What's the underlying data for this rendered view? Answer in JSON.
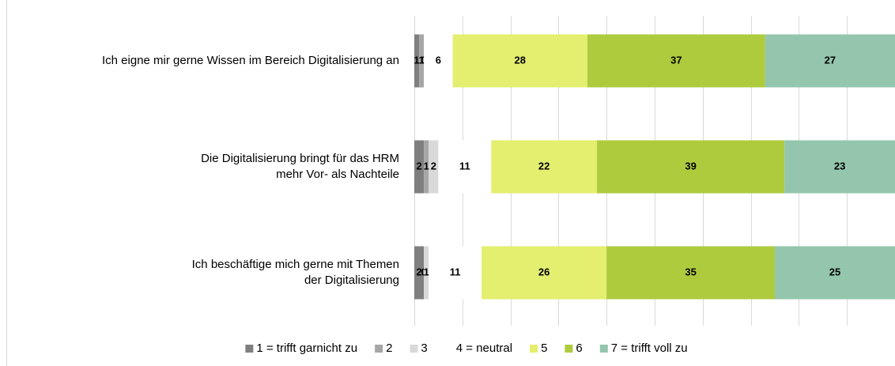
{
  "chart_data": {
    "type": "stacked-bar-horizontal",
    "categories": [
      [
        "Ich eigne mir gerne Wissen im Bereich Digitalisierung an"
      ],
      [
        "Die Digitalisierung bringt für das HRM",
        "mehr Vor- als Nachteile"
      ],
      [
        "Ich beschäftige mich gerne mit Themen",
        "der Digitalisierung"
      ]
    ],
    "series": [
      {
        "name": "1 = trifft garnicht zu",
        "color": "#7f7f7f",
        "values": [
          1,
          2,
          2
        ]
      },
      {
        "name": "2",
        "color": "#a6a6a6",
        "values": [
          1,
          1,
          0
        ]
      },
      {
        "name": "3",
        "color": "#d9d9d9",
        "values": [
          0,
          2,
          1
        ]
      },
      {
        "name": "4 = neutral",
        "color": "#ffffff",
        "values": [
          6,
          11,
          11
        ]
      },
      {
        "name": "5",
        "color": "#e4ee6f",
        "values": [
          28,
          22,
          26
        ]
      },
      {
        "name": "6",
        "color": "#aecb3e",
        "values": [
          37,
          39,
          35
        ]
      },
      {
        "name": "7 = trifft voll zu",
        "color": "#93c6ad",
        "values": [
          27,
          23,
          25
        ]
      }
    ],
    "xlim": [
      0,
      100
    ],
    "xticks": [
      0,
      10,
      20,
      30,
      40,
      50,
      60,
      70,
      80,
      90,
      100
    ],
    "grid": true,
    "legend": "bottom"
  }
}
